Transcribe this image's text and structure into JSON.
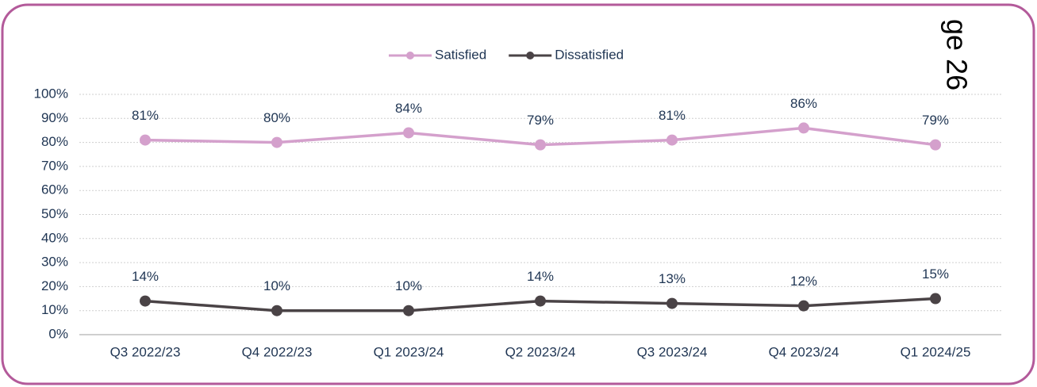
{
  "chart_data": {
    "type": "line",
    "page_label": "ge 26",
    "categories": [
      "Q3 2022/23",
      "Q4 2022/23",
      "Q1 2023/24",
      "Q2 2023/24",
      "Q3 2023/24",
      "Q4 2023/24",
      "Q1 2024/25"
    ],
    "series": [
      {
        "name": "Satisfied",
        "color": "#d4a0cc",
        "values": [
          81,
          80,
          84,
          79,
          81,
          86,
          79
        ],
        "value_labels": [
          "81%",
          "80%",
          "84%",
          "79%",
          "81%",
          "86%",
          "79%"
        ]
      },
      {
        "name": "Dissatisfied",
        "color": "#4a4346",
        "values": [
          14,
          10,
          10,
          14,
          13,
          12,
          15
        ],
        "value_labels": [
          "14%",
          "10%",
          "10%",
          "14%",
          "13%",
          "12%",
          "15%"
        ]
      }
    ],
    "ylim": [
      0,
      100
    ],
    "yticks": [
      {
        "value": 0,
        "label": "0%"
      },
      {
        "value": 10,
        "label": "10%"
      },
      {
        "value": 20,
        "label": "20%"
      },
      {
        "value": 30,
        "label": "30%"
      },
      {
        "value": 40,
        "label": "40%"
      },
      {
        "value": 50,
        "label": "50%"
      },
      {
        "value": 60,
        "label": "60%"
      },
      {
        "value": 70,
        "label": "70%"
      },
      {
        "value": 80,
        "label": "80%"
      },
      {
        "value": 90,
        "label": "90%"
      },
      {
        "value": 100,
        "label": "100%"
      }
    ],
    "grid": true,
    "legend": "top"
  }
}
